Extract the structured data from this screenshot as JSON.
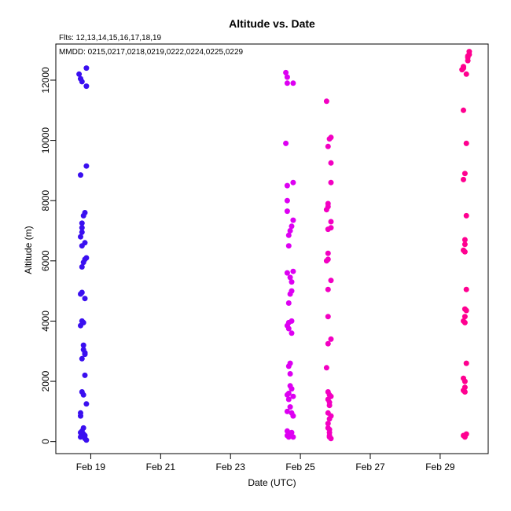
{
  "chart_data": {
    "type": "scatter",
    "title": "Altitude  vs. Date",
    "flights_note": "Flts: 12,13,14,15,16,17,18,19",
    "mmdd_note": "MMDD: 0215,0217,0218,0219,0222,0224,0225,0229",
    "xlabel": "Date (UTC)",
    "ylabel": "Altitude (m)",
    "xlim": [
      "2012-02-18 00:00",
      "2012-03-01 09:00"
    ],
    "ylim": [
      -400,
      13200
    ],
    "x_ticks": [
      {
        "date": "2012-02-19",
        "label": "Feb 19"
      },
      {
        "date": "2012-02-21",
        "label": "Feb 21"
      },
      {
        "date": "2012-02-23",
        "label": "Feb 23"
      },
      {
        "date": "2012-02-25",
        "label": "Feb 25"
      },
      {
        "date": "2012-02-27",
        "label": "Feb 27"
      },
      {
        "date": "2012-02-29",
        "label": "Feb 29"
      }
    ],
    "y_ticks": [
      0,
      2000,
      4000,
      6000,
      8000,
      10000,
      12000
    ],
    "grid": false,
    "series": [
      {
        "color": "#3a0ff0",
        "points": [
          [
            "2012-02-18 16:00",
            12200
          ],
          [
            "2012-02-18 17:00",
            12050
          ],
          [
            "2012-02-18 18:00",
            11950
          ],
          [
            "2012-02-18 21:00",
            12400
          ],
          [
            "2012-02-18 21:00",
            11800
          ],
          [
            "2012-02-18 21:00",
            9150
          ],
          [
            "2012-02-18 17:00",
            8850
          ],
          [
            "2012-02-18 20:00",
            7600
          ],
          [
            "2012-02-18 19:00",
            7500
          ],
          [
            "2012-02-18 18:00",
            7250
          ],
          [
            "2012-02-18 18:00",
            7100
          ],
          [
            "2012-02-18 18:00",
            6950
          ],
          [
            "2012-02-18 17:00",
            6800
          ],
          [
            "2012-02-18 20:00",
            6600
          ],
          [
            "2012-02-18 18:00",
            6500
          ],
          [
            "2012-02-18 21:00",
            6100
          ],
          [
            "2012-02-18 20:00",
            6050
          ],
          [
            "2012-02-18 19:00",
            5950
          ],
          [
            "2012-02-18 18:00",
            5800
          ],
          [
            "2012-02-18 18:00",
            4950
          ],
          [
            "2012-02-18 17:00",
            4900
          ],
          [
            "2012-02-18 20:00",
            4750
          ],
          [
            "2012-02-18 18:00",
            4000
          ],
          [
            "2012-02-18 19:00",
            3950
          ],
          [
            "2012-02-18 17:00",
            3850
          ],
          [
            "2012-02-18 19:00",
            3200
          ],
          [
            "2012-02-18 19:00",
            3050
          ],
          [
            "2012-02-18 20:00",
            2950
          ],
          [
            "2012-02-18 20:00",
            2900
          ],
          [
            "2012-02-18 18:00",
            2750
          ],
          [
            "2012-02-18 20:00",
            2200
          ],
          [
            "2012-02-18 18:00",
            1650
          ],
          [
            "2012-02-18 19:00",
            1550
          ],
          [
            "2012-02-18 21:00",
            1250
          ],
          [
            "2012-02-18 17:00",
            950
          ],
          [
            "2012-02-18 17:00",
            850
          ],
          [
            "2012-02-18 19:00",
            450
          ],
          [
            "2012-02-18 18:00",
            350
          ],
          [
            "2012-02-18 17:00",
            300
          ],
          [
            "2012-02-18 19:00",
            250
          ],
          [
            "2012-02-18 20:00",
            200
          ],
          [
            "2012-02-18 17:00",
            150
          ],
          [
            "2012-02-18 20:00",
            100
          ],
          [
            "2012-02-18 21:00",
            50
          ]
        ]
      },
      {
        "color": "#dd00f2",
        "points": [
          [
            "2012-02-24 14:00",
            12250
          ],
          [
            "2012-02-24 15:00",
            12100
          ],
          [
            "2012-02-24 15:00",
            11900
          ],
          [
            "2012-02-24 19:00",
            11900
          ],
          [
            "2012-02-24 14:00",
            9900
          ],
          [
            "2012-02-24 19:00",
            8600
          ],
          [
            "2012-02-24 15:00",
            8500
          ],
          [
            "2012-02-24 15:00",
            8000
          ],
          [
            "2012-02-24 15:00",
            7650
          ],
          [
            "2012-02-24 19:00",
            7350
          ],
          [
            "2012-02-24 18:00",
            7150
          ],
          [
            "2012-02-24 17:00",
            7000
          ],
          [
            "2012-02-24 16:00",
            6850
          ],
          [
            "2012-02-24 16:00",
            6500
          ],
          [
            "2012-02-24 19:00",
            5650
          ],
          [
            "2012-02-24 15:00",
            5600
          ],
          [
            "2012-02-24 17:00",
            5450
          ],
          [
            "2012-02-24 18:00",
            5300
          ],
          [
            "2012-02-24 18:00",
            5000
          ],
          [
            "2012-02-24 17:00",
            4900
          ],
          [
            "2012-02-24 16:00",
            4600
          ],
          [
            "2012-02-24 18:00",
            4000
          ],
          [
            "2012-02-24 16:00",
            3950
          ],
          [
            "2012-02-24 15:00",
            3850
          ],
          [
            "2012-02-24 16:00",
            3750
          ],
          [
            "2012-02-24 18:00",
            3600
          ],
          [
            "2012-02-24 17:00",
            2600
          ],
          [
            "2012-02-24 16:00",
            2500
          ],
          [
            "2012-02-24 17:00",
            2250
          ],
          [
            "2012-02-24 17:00",
            1850
          ],
          [
            "2012-02-24 18:00",
            1750
          ],
          [
            "2012-02-24 16:00",
            1600
          ],
          [
            "2012-02-24 15:00",
            1550
          ],
          [
            "2012-02-24 19:00",
            1500
          ],
          [
            "2012-02-24 16:00",
            1400
          ],
          [
            "2012-02-24 17:00",
            1150
          ],
          [
            "2012-02-24 15:00",
            1000
          ],
          [
            "2012-02-24 18:00",
            950
          ],
          [
            "2012-02-24 19:00",
            850
          ],
          [
            "2012-02-24 15:00",
            350
          ],
          [
            "2012-02-24 18:00",
            300
          ],
          [
            "2012-02-24 17:00",
            250
          ],
          [
            "2012-02-24 15:00",
            200
          ],
          [
            "2012-02-24 16:00",
            150
          ],
          [
            "2012-02-24 19:00",
            150
          ]
        ]
      },
      {
        "color": "#f300c2",
        "points": [
          [
            "2012-02-25 18:00",
            11300
          ],
          [
            "2012-02-25 21:00",
            10100
          ],
          [
            "2012-02-25 20:00",
            10050
          ],
          [
            "2012-02-25 19:00",
            9800
          ],
          [
            "2012-02-25 21:00",
            9250
          ],
          [
            "2012-02-25 21:00",
            8600
          ],
          [
            "2012-02-25 19:00",
            7900
          ],
          [
            "2012-02-25 19:00",
            7800
          ],
          [
            "2012-02-25 18:00",
            7700
          ],
          [
            "2012-02-25 21:00",
            7300
          ],
          [
            "2012-02-25 21:00",
            7100
          ],
          [
            "2012-02-25 19:00",
            7050
          ],
          [
            "2012-02-25 19:00",
            6250
          ],
          [
            "2012-02-25 19:00",
            6050
          ],
          [
            "2012-02-25 18:00",
            6000
          ],
          [
            "2012-02-25 21:00",
            5350
          ],
          [
            "2012-02-25 19:00",
            5050
          ],
          [
            "2012-02-25 19:00",
            4150
          ],
          [
            "2012-02-25 21:00",
            3400
          ],
          [
            "2012-02-25 19:00",
            3250
          ],
          [
            "2012-02-25 18:00",
            2450
          ],
          [
            "2012-02-25 19:00",
            1650
          ],
          [
            "2012-02-25 20:00",
            1550
          ],
          [
            "2012-02-25 21:00",
            1500
          ],
          [
            "2012-02-25 19:00",
            1400
          ],
          [
            "2012-02-25 20:00",
            1300
          ],
          [
            "2012-02-25 20:00",
            1200
          ],
          [
            "2012-02-25 19:00",
            950
          ],
          [
            "2012-02-25 21:00",
            850
          ],
          [
            "2012-02-25 20:00",
            750
          ],
          [
            "2012-02-25 19:00",
            600
          ],
          [
            "2012-02-25 19:00",
            450
          ],
          [
            "2012-02-25 20:00",
            400
          ],
          [
            "2012-02-25 20:00",
            300
          ],
          [
            "2012-02-25 20:00",
            200
          ],
          [
            "2012-02-25 20:00",
            150
          ],
          [
            "2012-02-25 21:00",
            100
          ]
        ]
      },
      {
        "color": "#ff0090",
        "points": [
          [
            "2012-02-29 20:00",
            12950
          ],
          [
            "2012-02-29 20:00",
            12850
          ],
          [
            "2012-02-29 19:00",
            12800
          ],
          [
            "2012-02-29 19:00",
            12750
          ],
          [
            "2012-02-29 19:00",
            12650
          ],
          [
            "2012-02-29 16:00",
            12450
          ],
          [
            "2012-02-29 16:00",
            12400
          ],
          [
            "2012-02-29 15:00",
            12350
          ],
          [
            "2012-02-29 18:00",
            12200
          ],
          [
            "2012-02-29 16:00",
            11000
          ],
          [
            "2012-02-29 18:00",
            9900
          ],
          [
            "2012-02-29 17:00",
            8900
          ],
          [
            "2012-02-29 16:00",
            8700
          ],
          [
            "2012-02-29 18:00",
            7500
          ],
          [
            "2012-02-29 17:00",
            6700
          ],
          [
            "2012-02-29 17:00",
            6550
          ],
          [
            "2012-02-29 16:00",
            6350
          ],
          [
            "2012-02-29 17:00",
            6300
          ],
          [
            "2012-02-29 18:00",
            5050
          ],
          [
            "2012-02-29 17:00",
            4400
          ],
          [
            "2012-02-29 18:00",
            4350
          ],
          [
            "2012-02-29 17:00",
            4150
          ],
          [
            "2012-02-29 16:00",
            4000
          ],
          [
            "2012-02-29 17:00",
            3950
          ],
          [
            "2012-02-29 18:00",
            2600
          ],
          [
            "2012-02-29 16:00",
            2100
          ],
          [
            "2012-02-29 17:00",
            2000
          ],
          [
            "2012-02-29 17:00",
            1800
          ],
          [
            "2012-02-29 16:00",
            1700
          ],
          [
            "2012-02-29 17:00",
            1650
          ],
          [
            "2012-02-29 18:00",
            250
          ],
          [
            "2012-02-29 16:00",
            200
          ],
          [
            "2012-02-29 17:00",
            150
          ]
        ]
      }
    ]
  }
}
